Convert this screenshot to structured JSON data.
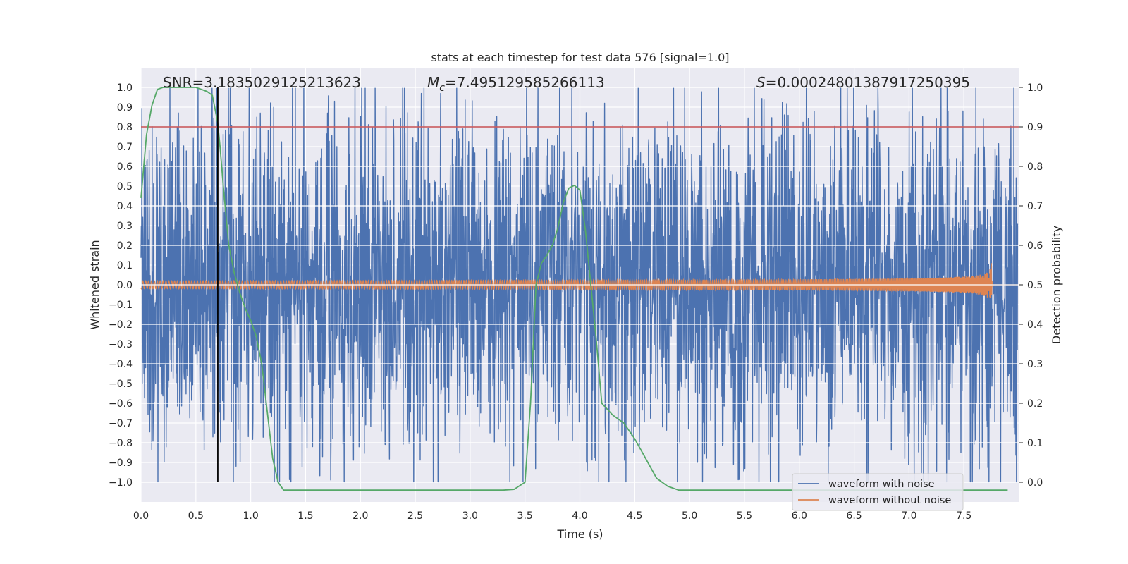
{
  "chart_data": {
    "type": "line",
    "title": "stats at each timestep for test data 576 [signal=1.0]",
    "xlabel": "Time (s)",
    "ylabel": "Whitened strain",
    "y2label": "Detection probability",
    "xlim": [
      0.0,
      8.0
    ],
    "ylim": [
      -1.1,
      1.1
    ],
    "y2lim": [
      -0.05,
      1.05
    ],
    "x_ticks": [
      "0.0",
      "0.5",
      "1.0",
      "1.5",
      "2.0",
      "2.5",
      "3.0",
      "3.5",
      "4.0",
      "4.5",
      "5.0",
      "5.5",
      "6.0",
      "6.5",
      "7.0",
      "7.5"
    ],
    "y_ticks": [
      "1.0",
      "0.9",
      "0.8",
      "0.7",
      "0.6",
      "0.5",
      "0.4",
      "0.3",
      "0.2",
      "0.1",
      "0.0",
      "−0.1",
      "−0.2",
      "−0.3",
      "−0.4",
      "−0.5",
      "−0.6",
      "−0.7",
      "−0.8",
      "−0.9",
      "−1.0"
    ],
    "y2_ticks": [
      "1.0",
      "0.9",
      "0.8",
      "0.7",
      "0.6",
      "0.5",
      "0.4",
      "0.3",
      "0.2",
      "0.1",
      "0.0"
    ],
    "annotations": {
      "snr": "SNR=3.1835029125213623",
      "mc_symbol": "M",
      "mc_subscript": "c",
      "mc_value": "=7.495129585266113",
      "s_symbol": "S",
      "s_value": "=0.00024801387917250395"
    },
    "series": [
      {
        "name": "waveform with noise",
        "color": "#4c72b0",
        "kind": "noise",
        "typical_amplitude": 0.42,
        "max_abs": 1.0
      },
      {
        "name": "waveform without noise",
        "color": "#dd8452",
        "kind": "chirp",
        "merger_time": 7.75,
        "peak_amplitude": 0.12
      },
      {
        "name": "detection probability",
        "color": "#55a868",
        "axis": "right",
        "x": [
          0.0,
          0.05,
          0.1,
          0.15,
          0.2,
          0.3,
          0.4,
          0.5,
          0.6,
          0.65,
          0.7,
          0.72,
          0.75,
          0.8,
          0.85,
          0.9,
          0.95,
          1.0,
          1.05,
          1.1,
          1.15,
          1.2,
          1.25,
          1.3,
          1.4,
          1.6,
          2.0,
          2.5,
          3.0,
          3.3,
          3.4,
          3.5,
          3.55,
          3.6,
          3.65,
          3.7,
          3.75,
          3.8,
          3.85,
          3.9,
          3.95,
          4.0,
          4.05,
          4.1,
          4.15,
          4.2,
          4.3,
          4.4,
          4.5,
          4.6,
          4.7,
          4.8,
          4.9,
          5.0,
          5.5,
          6.0,
          7.0,
          7.9
        ],
        "values": [
          0.72,
          0.88,
          0.955,
          0.995,
          1.0,
          1.0,
          1.0,
          1.0,
          0.99,
          0.98,
          0.91,
          0.85,
          0.75,
          0.6,
          0.53,
          0.48,
          0.44,
          0.41,
          0.37,
          0.3,
          0.18,
          0.06,
          0.0,
          -0.02,
          -0.02,
          -0.02,
          -0.02,
          -0.02,
          -0.02,
          -0.02,
          -0.018,
          0.0,
          0.2,
          0.5,
          0.555,
          0.575,
          0.6,
          0.645,
          0.71,
          0.745,
          0.752,
          0.74,
          0.64,
          0.5,
          0.36,
          0.2,
          0.17,
          0.15,
          0.11,
          0.06,
          0.01,
          -0.01,
          -0.02,
          -0.02,
          -0.02,
          -0.02,
          -0.02,
          -0.02
        ]
      },
      {
        "name": "threshold",
        "color": "#c44e52",
        "axis": "right",
        "value": 0.9
      },
      {
        "name": "marker",
        "color": "#000000",
        "x": 0.7
      }
    ],
    "legend": {
      "position": "bottom-right",
      "entries": [
        "waveform with noise",
        "waveform without noise"
      ]
    }
  }
}
